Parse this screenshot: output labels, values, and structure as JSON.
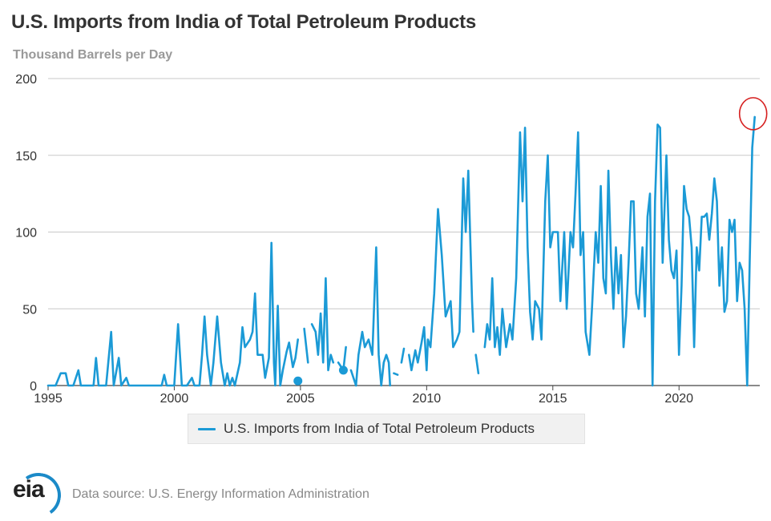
{
  "title": "U.S. Imports from India of Total Petroleum Products",
  "subtitle": "Thousand Barrels per Day",
  "source": "Data source: U.S. Energy Information Administration",
  "logo_text": "eia",
  "colors": {
    "series": "#1b9ad6",
    "annotation": "#d62020",
    "grid": "#c8c8c8"
  },
  "chart_data": {
    "type": "line",
    "title": "U.S. Imports from India of Total Petroleum Products",
    "ylabel": "Thousand Barrels per Day",
    "xlabel": "",
    "xlim": [
      1995,
      2023.2
    ],
    "ylim": [
      0,
      200
    ],
    "x_ticks": [
      1995,
      2000,
      2005,
      2010,
      2015,
      2020
    ],
    "y_ticks": [
      0,
      50,
      100,
      150,
      200
    ],
    "grid": true,
    "legend": "bottom-center",
    "annotation": "red hand-drawn circle around the latest peak (~2023)",
    "series": [
      {
        "name": "U.S. Imports from India of Total Petroleum Products",
        "color": "#1b9ad6",
        "segments": [
          [
            [
              1995.0,
              0
            ],
            [
              1995.3,
              0
            ],
            [
              1995.5,
              8
            ],
            [
              1995.7,
              8
            ],
            [
              1995.8,
              0
            ],
            [
              1996.0,
              0
            ],
            [
              1996.2,
              10
            ],
            [
              1996.3,
              0
            ],
            [
              1996.5,
              0
            ],
            [
              1996.8,
              0
            ],
            [
              1996.9,
              18
            ],
            [
              1997.0,
              0
            ],
            [
              1997.3,
              0
            ],
            [
              1997.5,
              35
            ],
            [
              1997.6,
              0
            ],
            [
              1997.8,
              18
            ],
            [
              1997.9,
              0
            ],
            [
              1998.1,
              5
            ],
            [
              1998.2,
              0
            ],
            [
              1999.5,
              0
            ],
            [
              1999.6,
              7
            ],
            [
              1999.7,
              0
            ],
            [
              2000.0,
              0
            ],
            [
              2000.15,
              40
            ],
            [
              2000.3,
              0
            ],
            [
              2000.5,
              0
            ],
            [
              2000.7,
              5
            ],
            [
              2000.8,
              0
            ],
            [
              2001.0,
              0
            ],
            [
              2001.1,
              20
            ],
            [
              2001.2,
              45
            ],
            [
              2001.3,
              20
            ],
            [
              2001.45,
              0
            ],
            [
              2001.55,
              15
            ],
            [
              2001.7,
              45
            ],
            [
              2001.85,
              15
            ],
            [
              2002.0,
              0
            ],
            [
              2002.1,
              8
            ],
            [
              2002.2,
              0
            ],
            [
              2002.3,
              5
            ],
            [
              2002.4,
              0
            ],
            [
              2002.6,
              15
            ],
            [
              2002.7,
              38
            ],
            [
              2002.8,
              25
            ],
            [
              2003.0,
              30
            ],
            [
              2003.1,
              35
            ],
            [
              2003.2,
              60
            ],
            [
              2003.3,
              20
            ],
            [
              2003.4,
              20
            ],
            [
              2003.5,
              20
            ],
            [
              2003.6,
              5
            ],
            [
              2003.75,
              18
            ],
            [
              2003.85,
              93
            ],
            [
              2003.95,
              15
            ],
            [
              2004.0,
              0
            ],
            [
              2004.1,
              52
            ],
            [
              2004.2,
              0
            ],
            [
              2004.3,
              10
            ],
            [
              2004.45,
              22
            ],
            [
              2004.55,
              28
            ],
            [
              2004.7,
              12
            ],
            [
              2004.8,
              18
            ],
            [
              2004.9,
              30
            ]
          ],
          [
            [
              2005.15,
              37
            ],
            [
              2005.3,
              15
            ]
          ],
          [
            [
              2005.45,
              40
            ],
            [
              2005.6,
              35
            ],
            [
              2005.7,
              20
            ],
            [
              2005.8,
              47
            ],
            [
              2005.9,
              15
            ],
            [
              2006.0,
              70
            ],
            [
              2006.1,
              10
            ],
            [
              2006.2,
              20
            ],
            [
              2006.3,
              15
            ]
          ],
          [
            [
              2006.5,
              15
            ],
            [
              2006.7,
              10
            ],
            [
              2006.8,
              25
            ]
          ],
          [
            [
              2007.0,
              10
            ],
            [
              2007.2,
              0
            ],
            [
              2007.3,
              20
            ],
            [
              2007.45,
              35
            ],
            [
              2007.55,
              25
            ],
            [
              2007.7,
              30
            ],
            [
              2007.85,
              20
            ],
            [
              2008.0,
              90
            ],
            [
              2008.1,
              20
            ],
            [
              2008.2,
              0
            ],
            [
              2008.3,
              15
            ],
            [
              2008.4,
              20
            ],
            [
              2008.5,
              15
            ],
            [
              2008.55,
              0
            ]
          ],
          [
            [
              2008.7,
              8
            ],
            [
              2008.85,
              7
            ]
          ],
          [
            [
              2009.0,
              15
            ],
            [
              2009.1,
              24
            ]
          ],
          [
            [
              2009.3,
              20
            ],
            [
              2009.4,
              10
            ],
            [
              2009.55,
              23
            ],
            [
              2009.65,
              15
            ],
            [
              2009.8,
              28
            ],
            [
              2009.9,
              38
            ],
            [
              2010.0,
              10
            ],
            [
              2010.05,
              30
            ],
            [
              2010.15,
              25
            ],
            [
              2010.3,
              60
            ],
            [
              2010.45,
              115
            ],
            [
              2010.6,
              85
            ],
            [
              2010.75,
              45
            ],
            [
              2010.85,
              50
            ],
            [
              2010.95,
              55
            ],
            [
              2011.05,
              25
            ],
            [
              2011.2,
              30
            ],
            [
              2011.3,
              35
            ],
            [
              2011.45,
              135
            ],
            [
              2011.55,
              100
            ],
            [
              2011.65,
              140
            ],
            [
              2011.8,
              55
            ],
            [
              2011.85,
              35
            ]
          ],
          [
            [
              2011.95,
              20
            ],
            [
              2012.05,
              8
            ]
          ],
          [
            [
              2012.3,
              25
            ],
            [
              2012.4,
              40
            ],
            [
              2012.5,
              30
            ],
            [
              2012.6,
              70
            ],
            [
              2012.7,
              25
            ],
            [
              2012.8,
              38
            ],
            [
              2012.9,
              20
            ],
            [
              2013.0,
              50
            ],
            [
              2013.15,
              25
            ],
            [
              2013.3,
              40
            ],
            [
              2013.4,
              30
            ],
            [
              2013.55,
              70
            ],
            [
              2013.7,
              165
            ],
            [
              2013.8,
              120
            ],
            [
              2013.9,
              168
            ],
            [
              2014.0,
              90
            ],
            [
              2014.1,
              48
            ],
            [
              2014.2,
              30
            ],
            [
              2014.3,
              55
            ],
            [
              2014.45,
              50
            ],
            [
              2014.55,
              30
            ],
            [
              2014.7,
              120
            ],
            [
              2014.8,
              150
            ],
            [
              2014.9,
              90
            ],
            [
              2015.0,
              100
            ],
            [
              2015.1,
              100
            ],
            [
              2015.2,
              100
            ],
            [
              2015.3,
              55
            ],
            [
              2015.45,
              100
            ],
            [
              2015.55,
              50
            ],
            [
              2015.7,
              100
            ],
            [
              2015.8,
              90
            ],
            [
              2015.9,
              125
            ],
            [
              2016.0,
              165
            ],
            [
              2016.1,
              85
            ],
            [
              2016.2,
              100
            ],
            [
              2016.3,
              35
            ],
            [
              2016.45,
              20
            ],
            [
              2016.55,
              50
            ],
            [
              2016.7,
              100
            ],
            [
              2016.8,
              80
            ],
            [
              2016.9,
              130
            ],
            [
              2017.0,
              70
            ],
            [
              2017.1,
              60
            ],
            [
              2017.2,
              140
            ],
            [
              2017.3,
              85
            ],
            [
              2017.4,
              50
            ],
            [
              2017.5,
              90
            ],
            [
              2017.6,
              60
            ],
            [
              2017.7,
              85
            ],
            [
              2017.8,
              25
            ],
            [
              2017.9,
              45
            ],
            [
              2018.0,
              80
            ],
            [
              2018.1,
              120
            ],
            [
              2018.2,
              120
            ],
            [
              2018.3,
              60
            ],
            [
              2018.4,
              50
            ],
            [
              2018.55,
              90
            ],
            [
              2018.65,
              45
            ],
            [
              2018.75,
              110
            ],
            [
              2018.85,
              125
            ],
            [
              2018.95,
              0
            ],
            [
              2019.05,
              120
            ],
            [
              2019.15,
              170
            ],
            [
              2019.25,
              168
            ],
            [
              2019.35,
              80
            ],
            [
              2019.5,
              150
            ],
            [
              2019.6,
              95
            ],
            [
              2019.7,
              75
            ],
            [
              2019.8,
              70
            ],
            [
              2019.9,
              88
            ],
            [
              2020.0,
              20
            ],
            [
              2020.1,
              65
            ],
            [
              2020.2,
              130
            ],
            [
              2020.3,
              115
            ],
            [
              2020.4,
              110
            ],
            [
              2020.5,
              90
            ],
            [
              2020.6,
              25
            ],
            [
              2020.7,
              90
            ],
            [
              2020.8,
              75
            ],
            [
              2020.9,
              110
            ],
            [
              2021.0,
              110
            ],
            [
              2021.1,
              112
            ],
            [
              2021.2,
              95
            ],
            [
              2021.3,
              112
            ],
            [
              2021.4,
              135
            ],
            [
              2021.5,
              120
            ],
            [
              2021.6,
              65
            ],
            [
              2021.7,
              90
            ],
            [
              2021.8,
              48
            ],
            [
              2021.9,
              55
            ],
            [
              2022.0,
              108
            ],
            [
              2022.1,
              100
            ],
            [
              2022.2,
              108
            ],
            [
              2022.3,
              55
            ],
            [
              2022.4,
              80
            ],
            [
              2022.5,
              75
            ],
            [
              2022.6,
              50
            ],
            [
              2022.7,
              0
            ],
            [
              2022.8,
              80
            ],
            [
              2022.9,
              155
            ],
            [
              2023.0,
              175
            ]
          ]
        ],
        "isolated_points": [
          [
            2004.9,
            3
          ],
          [
            2006.7,
            10
          ]
        ]
      }
    ]
  }
}
